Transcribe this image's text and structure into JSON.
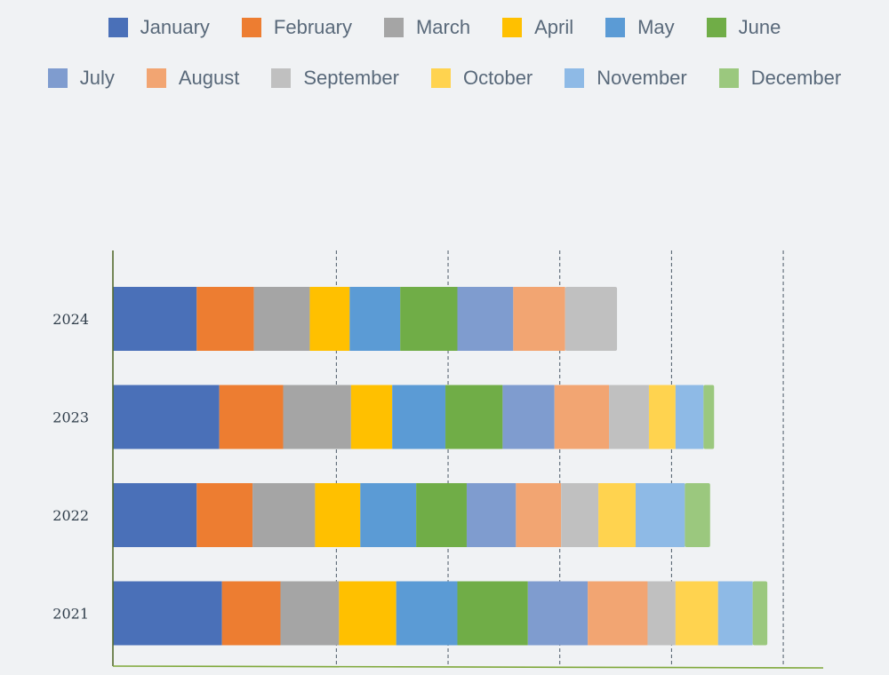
{
  "chart_data": {
    "type": "bar",
    "orientation": "horizontal",
    "stacked": true,
    "categories": [
      "2024",
      "2023",
      "2022",
      "2021"
    ],
    "series": [
      {
        "name": "January",
        "color": "#4a70b8",
        "values": [
          63,
          80,
          63,
          82
        ]
      },
      {
        "name": "February",
        "color": "#ed7d31",
        "values": [
          43,
          48,
          42,
          44
        ]
      },
      {
        "name": "March",
        "color": "#a5a5a5",
        "values": [
          42,
          51,
          47,
          44
        ]
      },
      {
        "name": "April",
        "color": "#ffc000",
        "values": [
          30,
          31,
          34,
          43
        ]
      },
      {
        "name": "May",
        "color": "#5b9bd5",
        "values": [
          38,
          40,
          42,
          46
        ]
      },
      {
        "name": "June",
        "color": "#70ad47",
        "values": [
          43,
          43,
          38,
          53
        ]
      },
      {
        "name": "July",
        "color": "#7f9ccf",
        "values": [
          42,
          39,
          37,
          45
        ]
      },
      {
        "name": "August",
        "color": "#f2a572",
        "values": [
          39,
          41,
          34,
          45
        ]
      },
      {
        "name": "September",
        "color": "#c0c0c0",
        "values": [
          39,
          30,
          28,
          21
        ]
      },
      {
        "name": "October",
        "color": "#ffd34f",
        "values": [
          0,
          20,
          28,
          32
        ]
      },
      {
        "name": "November",
        "color": "#8ebae6",
        "values": [
          0,
          21,
          37,
          26
        ]
      },
      {
        "name": "December",
        "color": "#9bc87e",
        "values": [
          0,
          8,
          19,
          11
        ]
      }
    ],
    "xlim": [
      0,
      520
    ],
    "x_gridlines": [
      168,
      252,
      336,
      420,
      504
    ],
    "grid": true,
    "legend_position": "top",
    "title": "",
    "xlabel": "",
    "ylabel": ""
  }
}
